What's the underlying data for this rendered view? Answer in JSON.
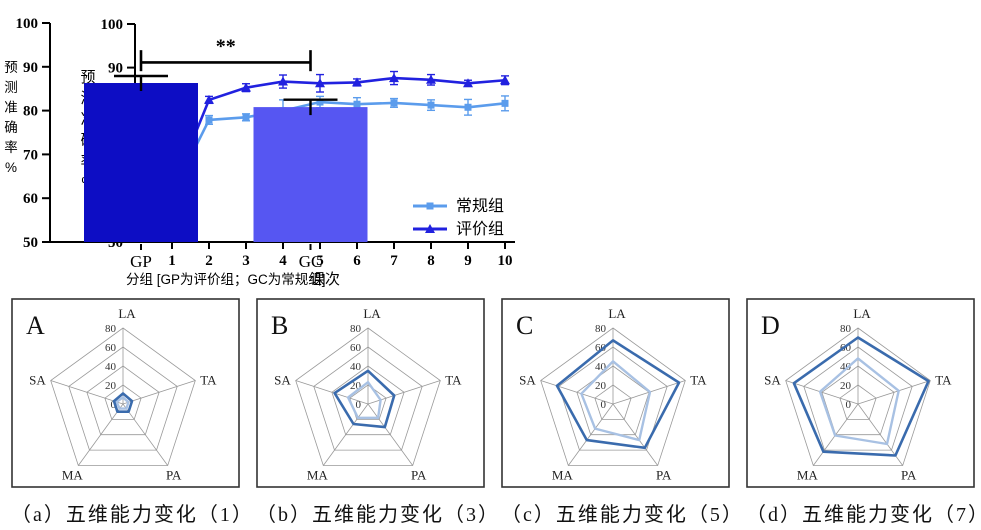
{
  "chart_data": [
    {
      "id": "line-accuracy",
      "type": "line",
      "title": "",
      "xlabel": "课次",
      "ylabel": "预测准确率%",
      "ylabel_vertical": [
        "预",
        "测",
        "准",
        "确",
        "率",
        "%"
      ],
      "x": [
        1,
        2,
        3,
        4,
        5,
        6,
        7,
        8,
        9,
        10
      ],
      "ylim": [
        50,
        100
      ],
      "yticks": [
        50,
        60,
        70,
        80,
        90,
        100
      ],
      "legend_position": "bottom-right",
      "grid": false,
      "series": [
        {
          "name": "常规组",
          "marker": "square",
          "color": "#5B9CEC",
          "values": [
            61,
            78,
            78.6,
            80.1,
            82.1,
            81.6,
            81.9,
            81.4,
            80.9,
            81.8
          ],
          "errors": [
            2,
            1,
            0.8,
            2.5,
            1.3,
            1.5,
            1,
            1.2,
            1.8,
            1.7
          ]
        },
        {
          "name": "评价组",
          "marker": "triangle",
          "color": "#2121DF",
          "values": [
            61.7,
            82.6,
            85.4,
            86.8,
            86.4,
            86.6,
            87.6,
            87.2,
            86.4,
            87.1
          ],
          "errors": [
            1.5,
            0.8,
            0.9,
            1.5,
            2,
            0.8,
            1.5,
            1.2,
            0.7,
            1
          ]
        }
      ]
    },
    {
      "id": "bar-accuracy",
      "type": "bar",
      "categories": [
        "GP",
        "GC"
      ],
      "values": [
        86.3,
        80.8
      ],
      "errors": [
        1.6,
        1.7
      ],
      "colors": [
        "#0D0DC4",
        "#5656F2"
      ],
      "xlabel": "分组 [GP为评价组；GC为常规组]",
      "ylabel": "预测准确率%",
      "ylabel_vertical": [
        "预",
        "测",
        "准",
        "确",
        "率",
        "%"
      ],
      "ylim": [
        50,
        100
      ],
      "yticks": [
        50,
        60,
        70,
        80,
        90,
        100
      ],
      "significance": {
        "label": "**",
        "between": [
          "GP",
          "GC"
        ],
        "line_y": 91,
        "cap_top": 93.8,
        "cap_bottom": 89
      }
    },
    {
      "id": "radar-a",
      "type": "radar",
      "panel_letter": "A",
      "caption": "（a）五维能力变化（1）",
      "axes": [
        "LA",
        "TA",
        "PA",
        "MA",
        "SA"
      ],
      "rlim": [
        0,
        80
      ],
      "rticks": [
        0,
        20,
        40,
        60,
        80
      ],
      "series": [
        {
          "color": "#3A6BAD",
          "width": 2.6,
          "values": [
            11,
            10,
            10,
            10,
            10
          ]
        },
        {
          "color": "#A8C1E3",
          "width": 2.4,
          "values": [
            7,
            6,
            6,
            6,
            7
          ]
        }
      ]
    },
    {
      "id": "radar-b",
      "type": "radar",
      "panel_letter": "B",
      "caption": "（b）五维能力变化（3）",
      "axes": [
        "LA",
        "TA",
        "PA",
        "MA",
        "SA"
      ],
      "rlim": [
        0,
        80
      ],
      "rticks": [
        0,
        20,
        40,
        60,
        80
      ],
      "series": [
        {
          "color": "#3A6BAD",
          "width": 2.6,
          "values": [
            35,
            29,
            30,
            26,
            37
          ]
        },
        {
          "color": "#A8C1E3",
          "width": 2.4,
          "values": [
            23,
            14,
            18,
            18,
            22
          ]
        }
      ]
    },
    {
      "id": "radar-c",
      "type": "radar",
      "panel_letter": "C",
      "caption": "（c）五维能力变化（5）",
      "axes": [
        "LA",
        "TA",
        "PA",
        "MA",
        "SA"
      ],
      "rlim": [
        0,
        80
      ],
      "rticks": [
        0,
        20,
        40,
        60,
        80
      ],
      "series": [
        {
          "color": "#3A6BAD",
          "width": 2.6,
          "values": [
            67,
            73,
            57,
            47,
            62
          ]
        },
        {
          "color": "#A8C1E3",
          "width": 2.4,
          "values": [
            45,
            41,
            47,
            32,
            35
          ]
        }
      ]
    },
    {
      "id": "radar-d",
      "type": "radar",
      "panel_letter": "D",
      "caption": "（d）五维能力变化（7）",
      "axes": [
        "LA",
        "TA",
        "PA",
        "MA",
        "SA"
      ],
      "rlim": [
        0,
        80
      ],
      "rticks": [
        0,
        20,
        40,
        60,
        80
      ],
      "series": [
        {
          "color": "#3A6BAD",
          "width": 2.6,
          "values": [
            70,
            78,
            67,
            62,
            71
          ]
        },
        {
          "color": "#A8C1E3",
          "width": 2.4,
          "values": [
            48,
            45,
            52,
            41,
            42
          ]
        }
      ]
    }
  ],
  "colors": {
    "axis": "#000000",
    "grid_gray": "#999999",
    "line_light_blue": "#5B9CEC",
    "line_dark_blue": "#2121DF",
    "bar_gp": "#0D0DC4",
    "bar_gc": "#5656F2",
    "radar_dark": "#3A6BAD",
    "radar_light": "#A8C1E3"
  }
}
